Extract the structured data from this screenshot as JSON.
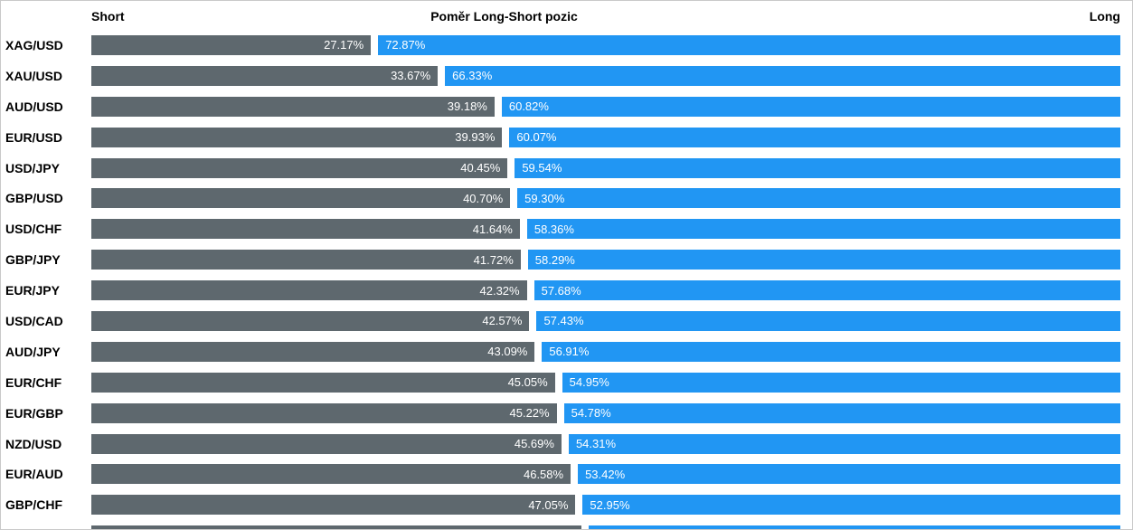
{
  "header": {
    "short_label": "Short",
    "title": "Poměr Long-Short pozic",
    "long_label": "Long"
  },
  "colors": {
    "short_bar": "#5e686e",
    "long_bar": "#2196f3",
    "value_text": "#ffffff",
    "label_text": "#000000"
  },
  "chart_data": {
    "type": "bar",
    "title": "Poměr Long-Short pozic",
    "orientation": "horizontal",
    "stacked": true,
    "legend": {
      "left": "Short",
      "right": "Long"
    },
    "xlim": [
      0,
      100
    ],
    "series": [
      {
        "name": "Short",
        "color": "#5e686e",
        "values": [
          27.17,
          33.67,
          39.18,
          39.93,
          40.45,
          40.7,
          41.64,
          41.72,
          42.32,
          42.57,
          43.09,
          45.05,
          45.22,
          45.69,
          46.58,
          47.05
        ]
      },
      {
        "name": "Long",
        "color": "#2196f3",
        "values": [
          72.87,
          66.33,
          60.82,
          60.07,
          59.54,
          59.3,
          58.36,
          58.29,
          57.68,
          57.43,
          56.91,
          54.95,
          54.78,
          54.31,
          53.42,
          52.95
        ]
      }
    ],
    "categories": [
      "XAG/USD",
      "XAU/USD",
      "AUD/USD",
      "EUR/USD",
      "USD/JPY",
      "GBP/USD",
      "USD/CHF",
      "GBP/JPY",
      "EUR/JPY",
      "USD/CAD",
      "AUD/JPY",
      "EUR/CHF",
      "EUR/GBP",
      "NZD/USD",
      "EUR/AUD",
      "GBP/CHF"
    ],
    "rows": [
      {
        "pair": "XAG/USD",
        "short": "27.17%",
        "long": "72.87%",
        "short_value": 27.17,
        "long_value": 72.87
      },
      {
        "pair": "XAU/USD",
        "short": "33.67%",
        "long": "66.33%",
        "short_value": 33.67,
        "long_value": 66.33
      },
      {
        "pair": "AUD/USD",
        "short": "39.18%",
        "long": "60.82%",
        "short_value": 39.18,
        "long_value": 60.82
      },
      {
        "pair": "EUR/USD",
        "short": "39.93%",
        "long": "60.07%",
        "short_value": 39.93,
        "long_value": 60.07
      },
      {
        "pair": "USD/JPY",
        "short": "40.45%",
        "long": "59.54%",
        "short_value": 40.45,
        "long_value": 59.54
      },
      {
        "pair": "GBP/USD",
        "short": "40.70%",
        "long": "59.30%",
        "short_value": 40.7,
        "long_value": 59.3
      },
      {
        "pair": "USD/CHF",
        "short": "41.64%",
        "long": "58.36%",
        "short_value": 41.64,
        "long_value": 58.36
      },
      {
        "pair": "GBP/JPY",
        "short": "41.72%",
        "long": "58.29%",
        "short_value": 41.72,
        "long_value": 58.29
      },
      {
        "pair": "EUR/JPY",
        "short": "42.32%",
        "long": "57.68%",
        "short_value": 42.32,
        "long_value": 57.68
      },
      {
        "pair": "USD/CAD",
        "short": "42.57%",
        "long": "57.43%",
        "short_value": 42.57,
        "long_value": 57.43
      },
      {
        "pair": "AUD/JPY",
        "short": "43.09%",
        "long": "56.91%",
        "short_value": 43.09,
        "long_value": 56.91
      },
      {
        "pair": "EUR/CHF",
        "short": "45.05%",
        "long": "54.95%",
        "short_value": 45.05,
        "long_value": 54.95
      },
      {
        "pair": "EUR/GBP",
        "short": "45.22%",
        "long": "54.78%",
        "short_value": 45.22,
        "long_value": 54.78
      },
      {
        "pair": "NZD/USD",
        "short": "45.69%",
        "long": "54.31%",
        "short_value": 45.69,
        "long_value": 54.31
      },
      {
        "pair": "EUR/AUD",
        "short": "46.58%",
        "long": "53.42%",
        "short_value": 46.58,
        "long_value": 53.42
      },
      {
        "pair": "GBP/CHF",
        "short": "47.05%",
        "long": "52.95%",
        "short_value": 47.05,
        "long_value": 52.95
      }
    ],
    "partial_next_row": {
      "short_value": 47.6
    }
  }
}
